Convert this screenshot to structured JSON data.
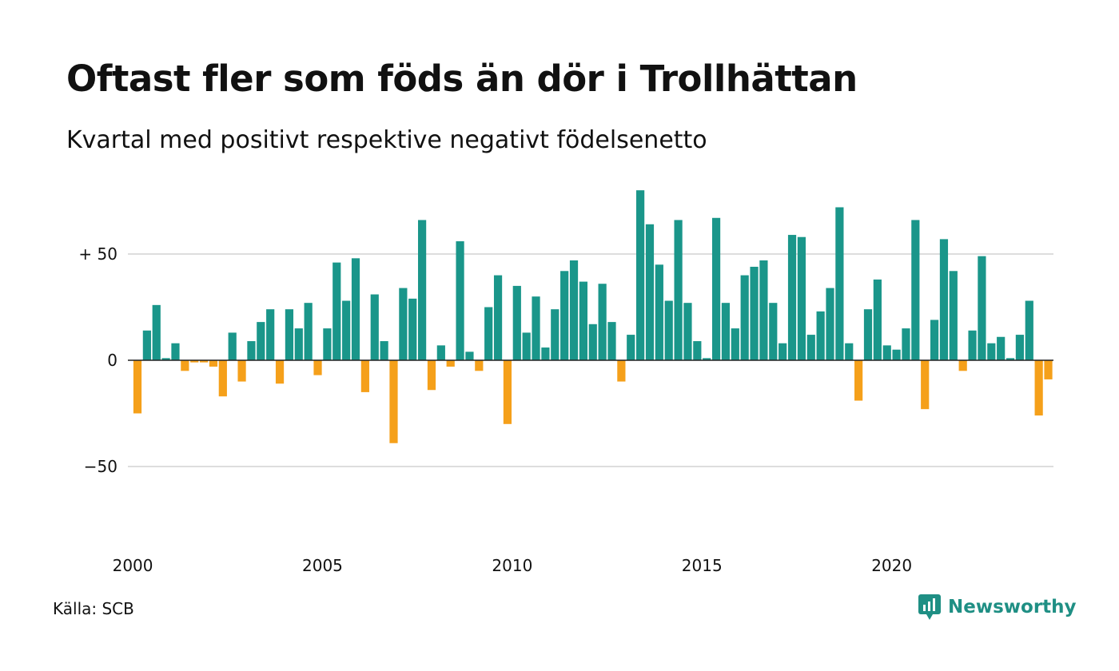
{
  "title": "Oftast fler som föds än dör i Trollhättan",
  "subtitle": "Kvartal med positivt respektive negativt födelsenetto",
  "source": "Källa: SCB",
  "brand": "Newsworthy",
  "colors": {
    "positive": "#1a968a",
    "negative": "#f5a01a",
    "gridline": "#dddddd",
    "zeroline": "#222222",
    "brand": "#1f8f84"
  },
  "chart_data": {
    "type": "bar",
    "title": "Oftast fler som föds än dör i Trollhättan",
    "subtitle": "Kvartal med positivt respektive negativt födelsenetto",
    "x_start": 2000,
    "periods_per_year": 4,
    "x_ticks": [
      "2000",
      "2005",
      "2010",
      "2015",
      "2020"
    ],
    "y_ticks": [
      {
        "value": 50,
        "label": "+ 50"
      },
      {
        "value": 0,
        "label": "0"
      },
      {
        "value": -50,
        "label": "−50"
      }
    ],
    "ylim": [
      -90,
      82
    ],
    "grid": true,
    "values": [
      -25,
      14,
      26,
      1,
      8,
      -5,
      -1,
      -1,
      -3,
      -17,
      13,
      -10,
      9,
      18,
      24,
      -11,
      24,
      15,
      27,
      -7,
      15,
      46,
      28,
      48,
      -15,
      31,
      9,
      -39,
      34,
      29,
      66,
      -14,
      7,
      -3,
      56,
      4,
      -5,
      25,
      40,
      -30,
      35,
      13,
      30,
      6,
      24,
      42,
      47,
      37,
      17,
      36,
      18,
      -10,
      12,
      80,
      64,
      45,
      28,
      66,
      27,
      9,
      1,
      67,
      27,
      15,
      40,
      44,
      47,
      27,
      8,
      59,
      58,
      12,
      23,
      34,
      72,
      8,
      -19,
      24,
      38,
      7,
      5,
      15,
      66,
      -23,
      19,
      57,
      42,
      -5,
      14,
      49,
      8,
      11,
      1,
      12,
      28,
      -26,
      -9
    ]
  }
}
